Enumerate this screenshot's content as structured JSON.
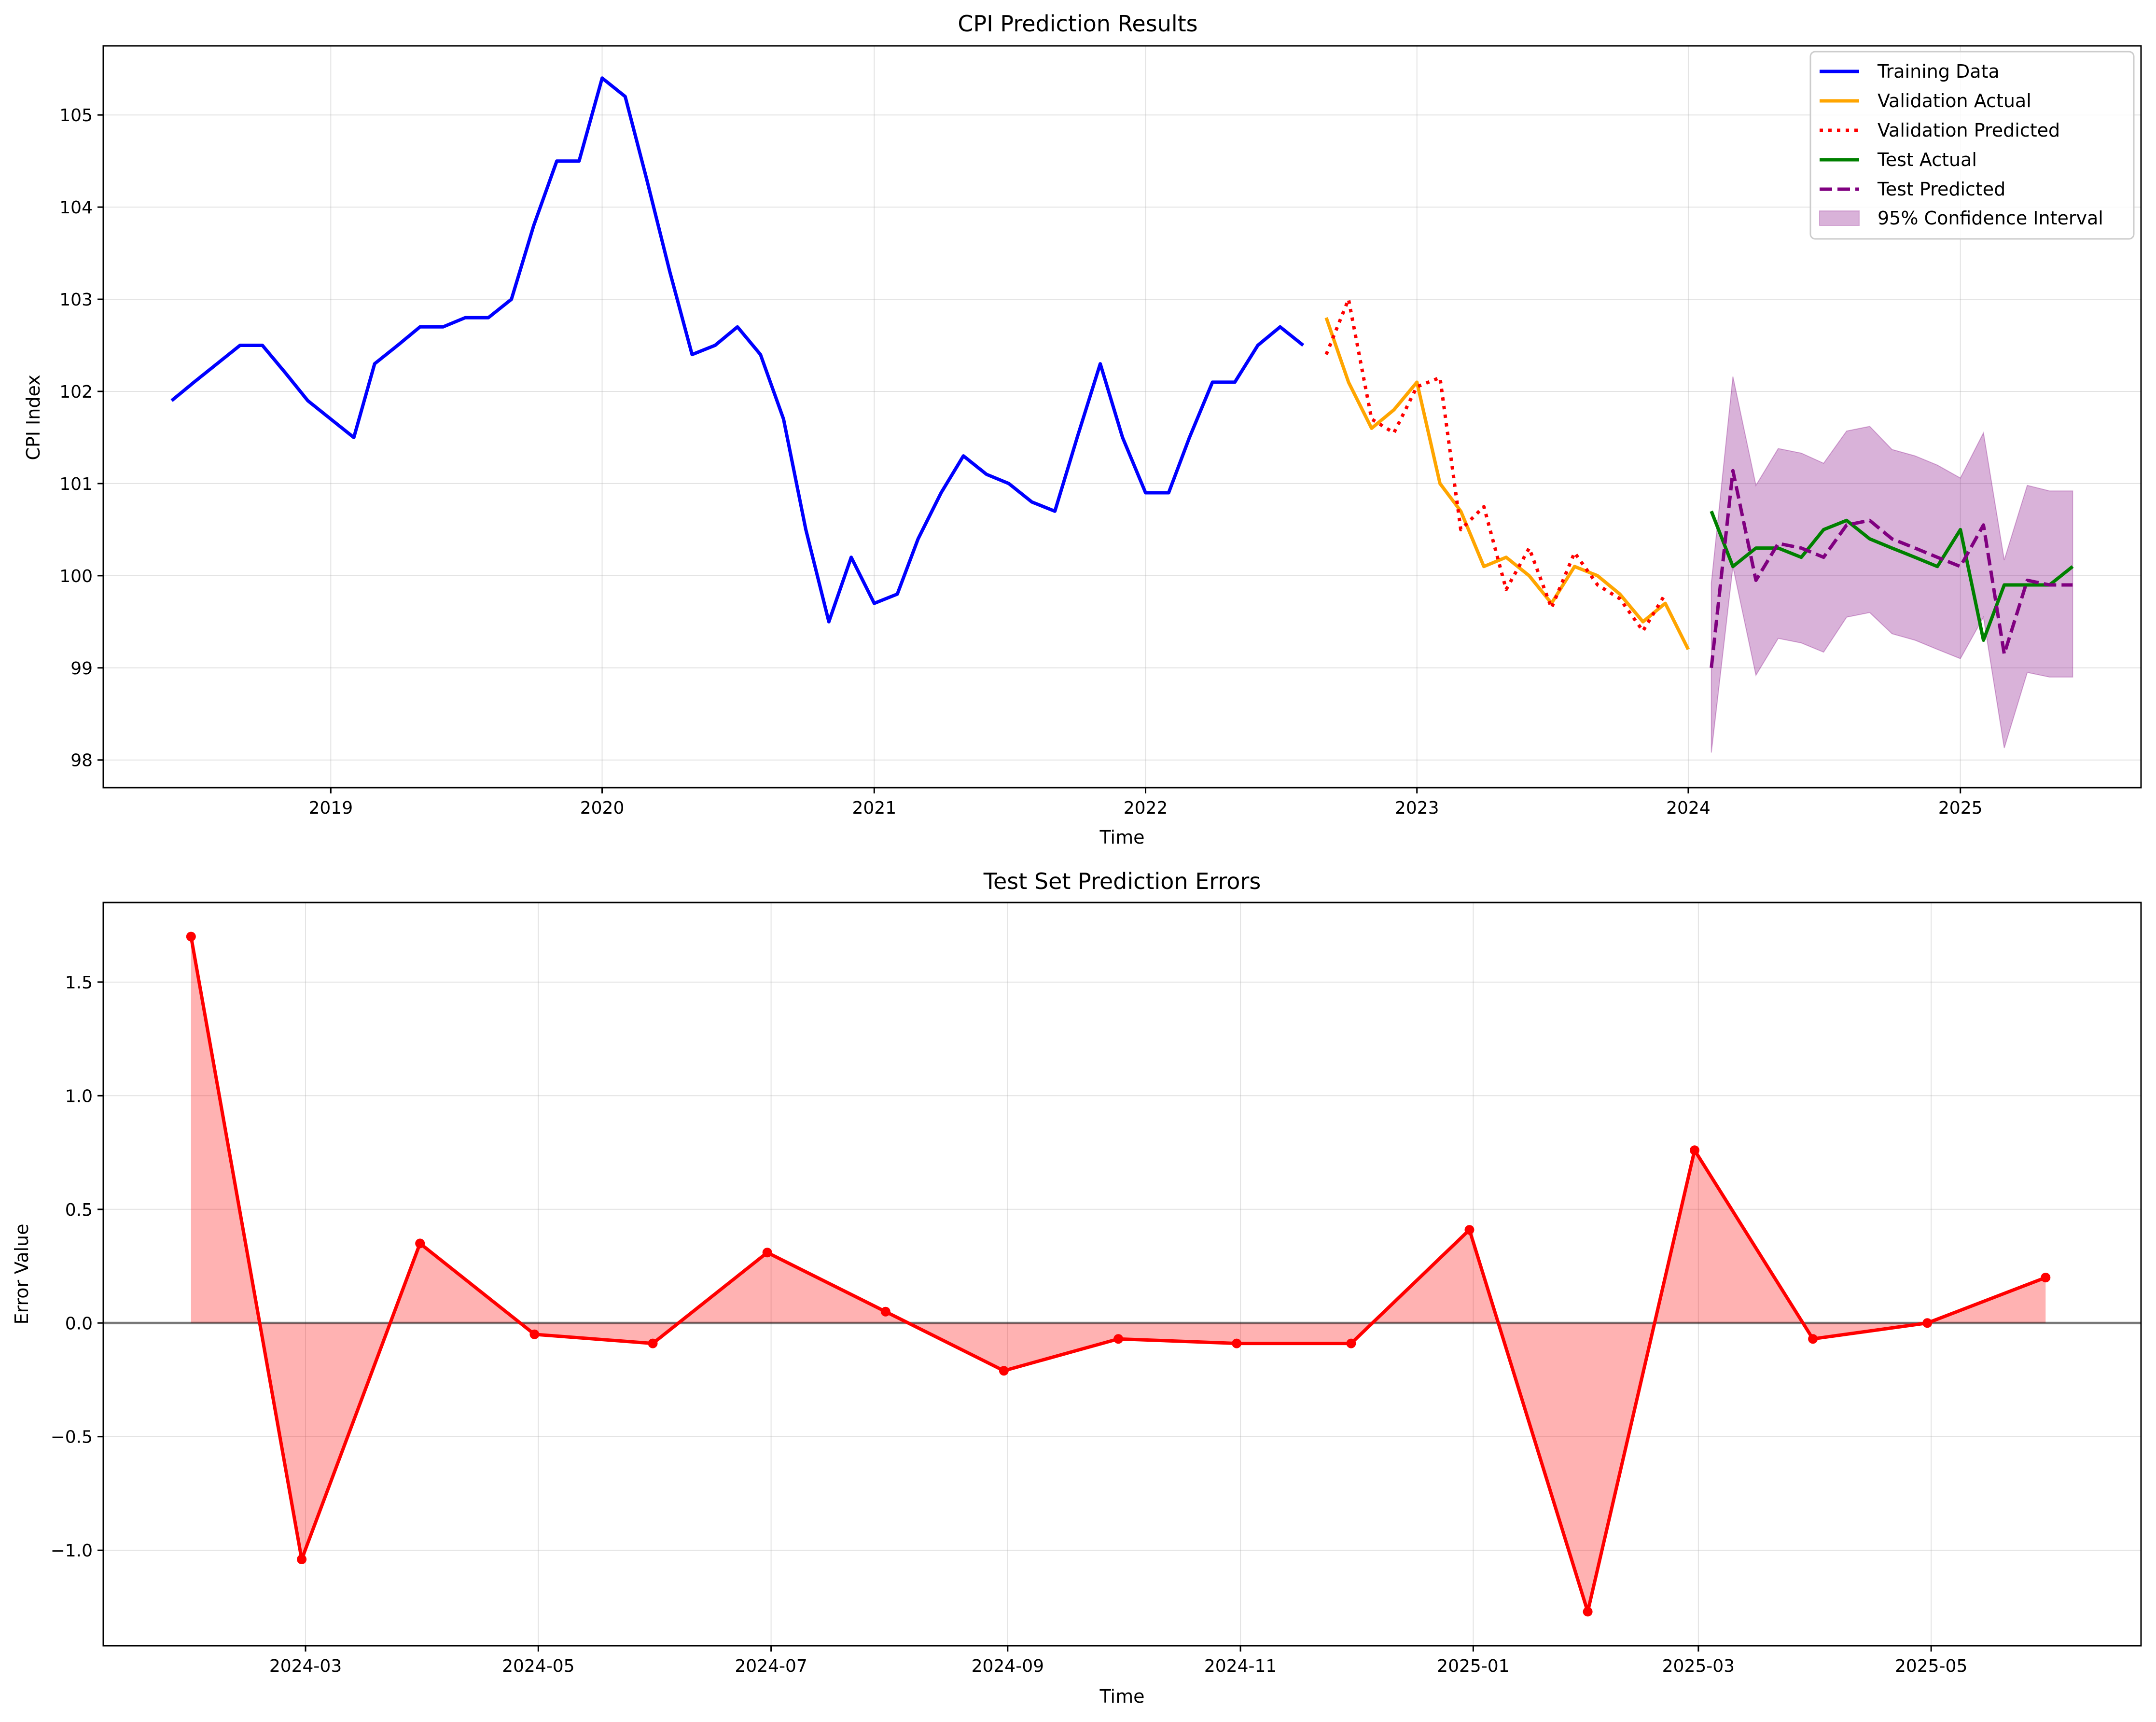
{
  "chart_data": [
    {
      "type": "line",
      "title": "CPI Prediction Results",
      "xlabel": "Time",
      "ylabel": "CPI Index",
      "xlim": [
        "2018-03-01",
        "2025-09-01"
      ],
      "ylim": [
        97.7,
        105.75
      ],
      "x_ticks": [
        "2019",
        "2020",
        "2021",
        "2022",
        "2023",
        "2024",
        "2025"
      ],
      "y_ticks": [
        "98",
        "99",
        "100",
        "101",
        "102",
        "103",
        "104",
        "105"
      ],
      "grid": true,
      "legend_position": "top-right",
      "series": [
        {
          "name": "Training Data",
          "color": "#0000ff",
          "style": "solid",
          "x": [
            "2018-06",
            "2018-07",
            "2018-08",
            "2018-09",
            "2018-10",
            "2018-11",
            "2018-12",
            "2019-01",
            "2019-02",
            "2019-03",
            "2019-04",
            "2019-05",
            "2019-06",
            "2019-07",
            "2019-08",
            "2019-09",
            "2019-10",
            "2019-11",
            "2019-12",
            "2020-01",
            "2020-02",
            "2020-03",
            "2020-04",
            "2020-05",
            "2020-06",
            "2020-07",
            "2020-08",
            "2020-09",
            "2020-10",
            "2020-11",
            "2020-12",
            "2021-01",
            "2021-02",
            "2021-03",
            "2021-04",
            "2021-05",
            "2021-06",
            "2021-07",
            "2021-08",
            "2021-09",
            "2021-10",
            "2021-11",
            "2021-12",
            "2022-01",
            "2022-02",
            "2022-03",
            "2022-04",
            "2022-05",
            "2022-06",
            "2022-07",
            "2022-08"
          ],
          "y": [
            101.9,
            102.1,
            102.3,
            102.5,
            102.5,
            102.2,
            101.9,
            101.7,
            101.5,
            102.3,
            102.5,
            102.7,
            102.7,
            102.8,
            102.8,
            103.0,
            103.8,
            104.5,
            104.5,
            105.4,
            105.2,
            104.3,
            103.3,
            102.4,
            102.5,
            102.7,
            102.4,
            101.7,
            100.5,
            99.5,
            100.2,
            99.7,
            99.8,
            100.4,
            100.9,
            101.3,
            101.1,
            101.0,
            100.8,
            100.7,
            101.5,
            102.3,
            101.5,
            100.9,
            100.9,
            101.5,
            102.1,
            102.1,
            102.5,
            102.7,
            102.5
          ]
        },
        {
          "name": "Validation Actual",
          "color": "#ffa500",
          "style": "solid",
          "x": [
            "2022-09",
            "2022-10",
            "2022-11",
            "2022-12",
            "2023-01",
            "2023-02",
            "2023-03",
            "2023-04",
            "2023-05",
            "2023-06",
            "2023-07",
            "2023-08",
            "2023-09",
            "2023-10",
            "2023-11",
            "2023-12",
            "2024-01"
          ],
          "y": [
            102.8,
            102.1,
            101.6,
            101.8,
            102.1,
            101.0,
            100.7,
            100.1,
            100.2,
            100.0,
            99.7,
            100.1,
            100.0,
            99.8,
            99.5,
            99.7,
            99.2
          ]
        },
        {
          "name": "Validation Predicted",
          "color": "#ff0000",
          "style": "dotted",
          "x": [
            "2022-09",
            "2022-10",
            "2022-11",
            "2022-12",
            "2023-01",
            "2023-02",
            "2023-03",
            "2023-04",
            "2023-05",
            "2023-06",
            "2023-07",
            "2023-08",
            "2023-09",
            "2023-10",
            "2023-11",
            "2023-12",
            "2024-01"
          ],
          "y": [
            102.4,
            103.0,
            101.7,
            101.55,
            102.05,
            102.15,
            100.5,
            100.75,
            99.85,
            100.3,
            99.65,
            100.25,
            99.9,
            99.75,
            99.4,
            99.8,
            null
          ]
        },
        {
          "name": "Test Actual",
          "color": "#008000",
          "style": "solid",
          "x": [
            "2024-02",
            "2024-03",
            "2024-04",
            "2024-05",
            "2024-06",
            "2024-07",
            "2024-08",
            "2024-09",
            "2024-10",
            "2024-11",
            "2024-12",
            "2025-01",
            "2025-02",
            "2025-03",
            "2025-04",
            "2025-05",
            "2025-06"
          ],
          "y": [
            100.7,
            100.1,
            100.3,
            100.3,
            100.2,
            100.5,
            100.6,
            100.4,
            100.3,
            100.2,
            100.1,
            100.5,
            99.3,
            99.9,
            99.9,
            99.9,
            100.1
          ]
        },
        {
          "name": "Test Predicted",
          "color": "#800080",
          "style": "dashed",
          "x": [
            "2024-02",
            "2024-03",
            "2024-04",
            "2024-05",
            "2024-06",
            "2024-07",
            "2024-08",
            "2024-09",
            "2024-10",
            "2024-11",
            "2024-12",
            "2025-01",
            "2025-02",
            "2025-03",
            "2025-04",
            "2025-05",
            "2025-06"
          ],
          "y": [
            99.0,
            101.14,
            99.95,
            100.35,
            100.3,
            100.2,
            100.55,
            100.6,
            100.4,
            100.3,
            100.2,
            100.1,
            100.55,
            99.15,
            99.95,
            99.9,
            99.9
          ]
        }
      ],
      "confidence_interval": {
        "name": "95% Confidence Interval",
        "color": "#800080",
        "x": [
          "2024-02",
          "2024-03",
          "2024-04",
          "2024-05",
          "2024-06",
          "2024-07",
          "2024-08",
          "2024-09",
          "2024-10",
          "2024-11",
          "2024-12",
          "2025-01",
          "2025-02",
          "2025-03",
          "2025-04",
          "2025-05",
          "2025-06"
        ],
        "lower": [
          98.08,
          100.1,
          98.92,
          99.32,
          99.27,
          99.17,
          99.55,
          99.6,
          99.37,
          99.3,
          99.2,
          99.1,
          99.55,
          98.13,
          98.95,
          98.9,
          98.9
        ],
        "upper": [
          99.92,
          102.16,
          100.98,
          101.38,
          101.33,
          101.22,
          101.57,
          101.62,
          101.37,
          101.3,
          101.2,
          101.06,
          101.55,
          100.17,
          100.98,
          100.92,
          100.92
        ]
      }
    },
    {
      "type": "area",
      "title": "Test Set Prediction Errors",
      "xlabel": "Time",
      "ylabel": "Error Value",
      "xlim": [
        "2024-01-08",
        "2025-06-25"
      ],
      "ylim": [
        -1.42,
        1.85
      ],
      "x_ticks": [
        "2024-03",
        "2024-05",
        "2024-07",
        "2024-09",
        "2024-11",
        "2025-01",
        "2025-03",
        "2025-05"
      ],
      "y_ticks": [
        "−1.0",
        "−0.5",
        "0.0",
        "0.5",
        "1.0",
        "1.5"
      ],
      "grid": true,
      "series": [
        {
          "name": "Error",
          "color": "#ff0000",
          "fill_color": "#ff0000",
          "x": [
            "2024-01-31",
            "2024-02-29",
            "2024-03-31",
            "2024-04-30",
            "2024-05-31",
            "2024-06-30",
            "2024-07-31",
            "2024-08-31",
            "2024-09-30",
            "2024-10-31",
            "2024-11-30",
            "2024-12-31",
            "2025-01-31",
            "2025-02-28",
            "2025-03-31",
            "2025-04-30",
            "2025-05-31"
          ],
          "y": [
            1.7,
            -1.04,
            0.35,
            -0.05,
            -0.09,
            0.31,
            0.05,
            -0.21,
            -0.07,
            -0.09,
            -0.09,
            0.41,
            -1.27,
            0.76,
            -0.07,
            0.0,
            0.2
          ]
        }
      ]
    }
  ]
}
